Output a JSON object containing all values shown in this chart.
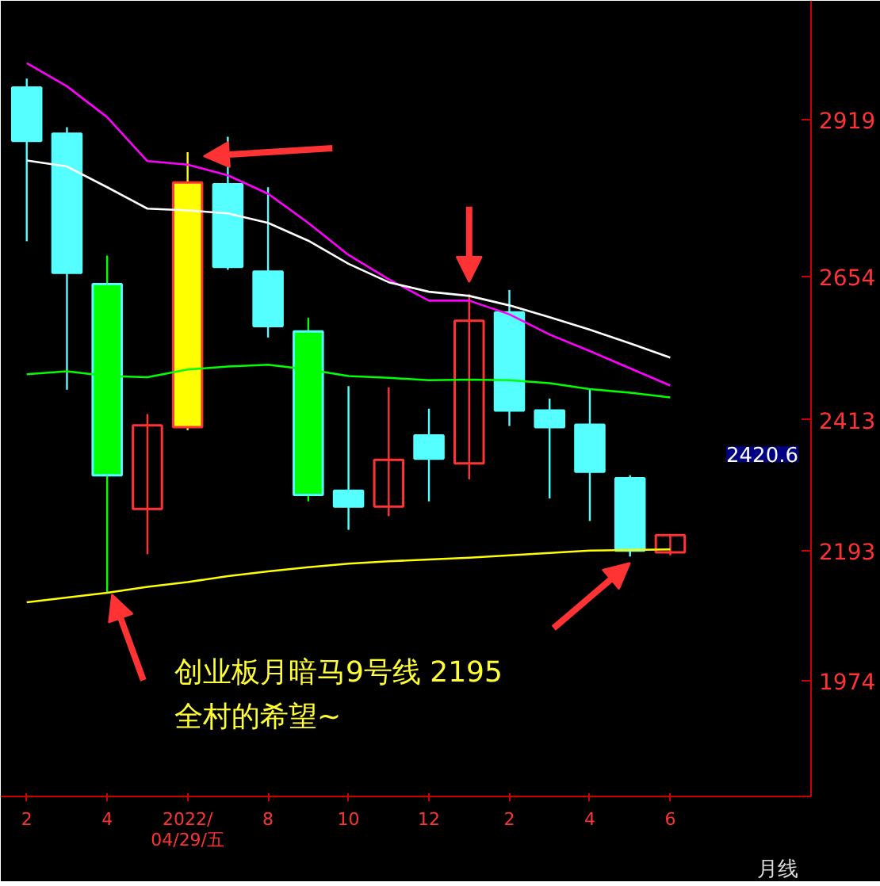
{
  "chart_data": {
    "type": "candlestick",
    "categories": [
      "2",
      null,
      "4",
      null,
      "2022/04/29/五",
      null,
      "8",
      null,
      "10",
      null,
      "12",
      null,
      "2",
      null,
      "4",
      null,
      "6"
    ],
    "ohlc": [
      [
        2973,
        2988,
        2714,
        2883
      ],
      [
        2895,
        2906,
        2464,
        2661
      ],
      [
        2642,
        2690,
        2122,
        2320
      ],
      [
        2263,
        2423,
        2187,
        2404
      ],
      [
        2401,
        2864,
        2396,
        2813
      ],
      [
        2810,
        2890,
        2666,
        2671
      ],
      [
        2663,
        2805,
        2552,
        2571
      ],
      [
        2562,
        2585,
        2276,
        2287
      ],
      [
        2294,
        2470,
        2228,
        2267
      ],
      [
        2267,
        2468,
        2251,
        2346
      ],
      [
        2387,
        2432,
        2276,
        2348
      ],
      [
        2340,
        2625,
        2313,
        2580
      ],
      [
        2594,
        2632,
        2403,
        2429
      ],
      [
        2429,
        2449,
        2281,
        2401
      ],
      [
        2405,
        2464,
        2243,
        2326
      ],
      [
        2315,
        2320,
        2183,
        2193
      ],
      [
        2190,
        2219,
        2185,
        2219
      ]
    ],
    "colors": [
      "#55ffff",
      "#55ffff",
      "#00ff00",
      null,
      "#ffff00",
      "#55ffff",
      "#55ffff",
      "#00ff00",
      "#55ffff",
      null,
      "#55ffff",
      null,
      "#55ffff",
      "#55ffff",
      "#55ffff",
      "#55ffff",
      null
    ],
    "series": [
      {
        "type": "line",
        "color": "#ff00ff",
        "values": [
          3014,
          2975,
          2923,
          2849,
          2843,
          2825,
          2794,
          2745,
          2691,
          2650,
          2614,
          2614,
          2591,
          2557,
          2529,
          2500,
          2471
        ]
      },
      {
        "type": "line",
        "color": "#ffffff",
        "values": [
          2850,
          2840,
          2805,
          2769,
          2766,
          2761,
          2745,
          2715,
          2676,
          2645,
          2629,
          2622,
          2606,
          2586,
          2565,
          2542,
          2518
        ]
      },
      {
        "type": "line",
        "color": "#00ff00",
        "values": [
          2490,
          2495,
          2487,
          2485,
          2498,
          2503,
          2506,
          2498,
          2487,
          2484,
          2480,
          2481,
          2480,
          2475,
          2465,
          2459,
          2451
        ]
      },
      {
        "type": "line",
        "color": "#ffff00",
        "values": [
          2106,
          2114,
          2122,
          2132,
          2140,
          2150,
          2158,
          2165,
          2171,
          2175,
          2178,
          2181,
          2185,
          2189,
          2193,
          2194,
          2195
        ]
      }
    ],
    "ylim": [
      1779,
      3119
    ],
    "yticks": [
      1974,
      2193,
      2413,
      2654,
      2919
    ],
    "annotations": [
      {
        "text": "创业板月暗马9号线  2195",
        "x": "4",
        "y": 2122
      },
      "全村的希望~",
      "2420.6",
      "月线"
    ],
    "grid": false,
    "marker": "none"
  }
}
